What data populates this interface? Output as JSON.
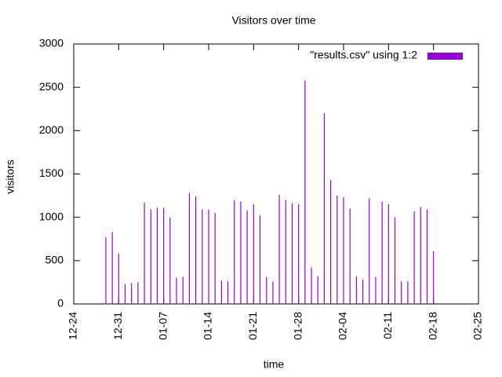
{
  "chart_data": {
    "type": "impulses",
    "title": "Visitors over time",
    "xlabel": "time",
    "ylabel": "visitors",
    "x": [
      "12-29",
      "12-30",
      "12-31",
      "01-01",
      "01-02",
      "01-03",
      "01-04",
      "01-05",
      "01-06",
      "01-07",
      "01-08",
      "01-09",
      "01-10",
      "01-11",
      "01-12",
      "01-13",
      "01-14",
      "01-15",
      "01-16",
      "01-17",
      "01-18",
      "01-19",
      "01-20",
      "01-21",
      "01-22",
      "01-23",
      "01-24",
      "01-25",
      "01-26",
      "01-27",
      "01-28",
      "01-29",
      "01-30",
      "01-31",
      "02-01",
      "02-02",
      "02-03",
      "02-04",
      "02-05",
      "02-06",
      "02-07",
      "02-08",
      "02-09",
      "02-10",
      "02-11",
      "02-12",
      "02-13",
      "02-14",
      "02-15",
      "02-16",
      "02-17",
      "02-18"
    ],
    "series": [
      {
        "name": "\"results.csv\" using 1:2",
        "color": "#9400d3",
        "values": [
          770,
          830,
          580,
          230,
          240,
          250,
          1170,
          1090,
          1110,
          1110,
          1000,
          300,
          310,
          1280,
          1240,
          1090,
          1090,
          1050,
          270,
          260,
          1200,
          1180,
          1080,
          1150,
          1020,
          310,
          260,
          1260,
          1200,
          1160,
          1150,
          2580,
          420,
          320,
          2200,
          1430,
          1250,
          1230,
          1100,
          320,
          280,
          1220,
          310,
          1180,
          1150,
          1000,
          260,
          260,
          1070,
          1120,
          1090,
          610
        ]
      }
    ],
    "xlim": [
      "12-24",
      "02-25"
    ],
    "xticks": [
      "12-24",
      "12-31",
      "01-07",
      "01-14",
      "01-21",
      "01-28",
      "02-04",
      "02-11",
      "02-18",
      "02-25"
    ],
    "ylim": [
      0,
      3000
    ],
    "yticks": [
      0,
      500,
      1000,
      1500,
      2000,
      2500,
      3000
    ],
    "legend": "top-right"
  }
}
